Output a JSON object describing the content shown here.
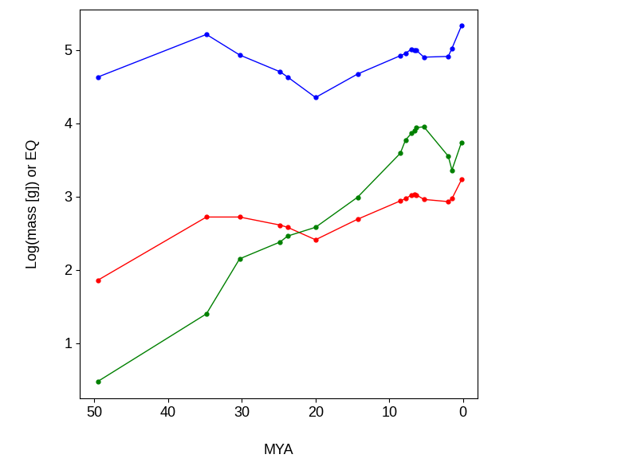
{
  "chart_data": {
    "type": "line",
    "xlabel": "MYA",
    "ylabel": "Log(mass [g]) or EQ",
    "x": [
      49.5,
      34.8,
      30.3,
      24.8,
      23.8,
      20.0,
      14.3,
      8.5,
      7.8,
      7.0,
      6.6,
      6.3,
      5.3,
      2.0,
      1.5,
      0.2
    ],
    "series": [
      {
        "color": "#0000ff",
        "marker": "o",
        "line_style": "solid",
        "values": [
          4.63,
          5.21,
          4.93,
          4.7,
          4.63,
          4.35,
          4.67,
          4.92,
          4.95,
          5.01,
          5.0,
          4.99,
          4.9,
          4.91,
          5.02,
          5.33
        ]
      },
      {
        "color": "#ff0000",
        "marker": "o",
        "line_style": "solid",
        "values": [
          1.86,
          2.72,
          2.72,
          2.61,
          2.58,
          2.41,
          2.69,
          2.94,
          2.97,
          3.02,
          3.03,
          3.02,
          2.96,
          2.93,
          2.97,
          3.23
        ]
      },
      {
        "color": "#008000",
        "marker": "o",
        "line_style": "solid",
        "values": [
          0.48,
          1.4,
          2.15,
          2.38,
          2.46,
          2.58,
          2.99,
          3.59,
          3.77,
          3.86,
          3.9,
          3.94,
          3.95,
          3.55,
          3.36,
          3.74
        ]
      }
    ],
    "xlim": [
      52,
      -2
    ],
    "xticks": [
      50,
      40,
      30,
      20,
      10,
      0
    ],
    "ylim": [
      0.25,
      5.55
    ],
    "yticks": [
      1,
      2,
      3,
      4,
      5
    ],
    "grid": false
  }
}
